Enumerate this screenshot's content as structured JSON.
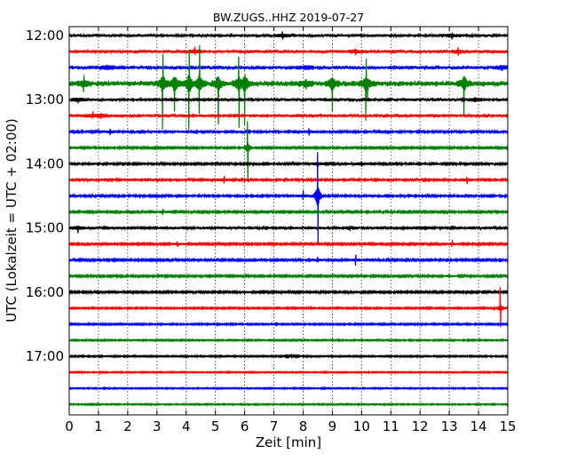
{
  "chart_data": {
    "type": "line",
    "title": "BW.ZUGS..HHZ 2019-07-27",
    "xlabel": "Zeit  [min]",
    "ylabel": "UTC (Lokalzeit = UTC + 02:00)",
    "xlim": [
      0,
      15
    ],
    "x_ticks": [
      0,
      1,
      2,
      3,
      4,
      5,
      6,
      7,
      8,
      9,
      10,
      11,
      12,
      13,
      14,
      15
    ],
    "x_tick_labels": [
      "0",
      "1",
      "2",
      "3",
      "4",
      "5",
      "6",
      "7",
      "8",
      "9",
      "10",
      "11",
      "12",
      "13",
      "14",
      "15"
    ],
    "y_tick_labels": [
      "12:00",
      "13:00",
      "14:00",
      "15:00",
      "16:00",
      "17:00"
    ],
    "grid": true,
    "colors": [
      "#000000",
      "#ff0000",
      "#0000ff",
      "#008000"
    ],
    "traces": [
      {
        "start": "12:00",
        "amp": 2.0,
        "events": [
          {
            "t": 7.3,
            "a": 6
          },
          {
            "t": 13.1,
            "a": 5
          }
        ]
      },
      {
        "start": "12:15",
        "amp": 2.2,
        "events": [
          {
            "t": 4.3,
            "a": 6
          },
          {
            "t": 9.8,
            "a": 5
          },
          {
            "t": 13.3,
            "a": 5
          }
        ]
      },
      {
        "start": "12:30",
        "amp": 2.6,
        "events": [
          {
            "t": 1.3,
            "a": 4
          },
          {
            "t": 8.1,
            "a": 4
          },
          {
            "t": 14.8,
            "a": 4
          }
        ]
      },
      {
        "start": "12:45",
        "amp": 3.5,
        "events": [
          {
            "t": 0.5,
            "a": 14
          },
          {
            "t": 3.2,
            "a": 52
          },
          {
            "t": 3.6,
            "a": 55
          },
          {
            "t": 4.1,
            "a": 60
          },
          {
            "t": 4.45,
            "a": 58
          },
          {
            "t": 5.1,
            "a": 55
          },
          {
            "t": 5.8,
            "a": 50
          },
          {
            "t": 6.0,
            "a": 62
          },
          {
            "t": 8.1,
            "a": 10
          },
          {
            "t": 9.0,
            "a": 50
          },
          {
            "t": 10.15,
            "a": 42
          },
          {
            "t": 10.2,
            "a": 30
          },
          {
            "t": 13.5,
            "a": 42
          }
        ]
      },
      {
        "start": "13:00",
        "amp": 2.2,
        "events": [
          {
            "t": 0.3,
            "a": 5
          },
          {
            "t": 13.9,
            "a": 4
          }
        ]
      },
      {
        "start": "13:15",
        "amp": 2.2,
        "events": [
          {
            "t": 0.8,
            "a": 5
          },
          {
            "t": 1.1,
            "a": 4
          }
        ]
      },
      {
        "start": "13:30",
        "amp": 1.6,
        "events": [
          {
            "t": 1.4,
            "a": 5
          },
          {
            "t": 8.2,
            "a": 6
          }
        ]
      },
      {
        "start": "13:45",
        "amp": 1.2,
        "events": [
          {
            "t": 6.1,
            "a": 40
          }
        ]
      },
      {
        "start": "14:00",
        "amp": 1.6,
        "events": [
          {
            "t": 8.5,
            "a": 5
          },
          {
            "t": 10.0,
            "a": 4
          }
        ]
      },
      {
        "start": "14:15",
        "amp": 1.7,
        "events": [
          {
            "t": 5.3,
            "a": 5
          },
          {
            "t": 13.6,
            "a": 5
          }
        ]
      },
      {
        "start": "14:30",
        "amp": 1.6,
        "events": [
          {
            "t": 8.0,
            "a": 7
          },
          {
            "t": 8.5,
            "a": 75
          }
        ]
      },
      {
        "start": "14:45",
        "amp": 1.4,
        "events": [
          {
            "t": 3.2,
            "a": 5
          }
        ]
      },
      {
        "start": "15:00",
        "amp": 1.9,
        "events": [
          {
            "t": 0.3,
            "a": 7
          },
          {
            "t": 9.6,
            "a": 5
          },
          {
            "t": 12.2,
            "a": 3
          }
        ]
      },
      {
        "start": "15:15",
        "amp": 1.3,
        "events": [
          {
            "t": 3.7,
            "a": 5
          },
          {
            "t": 13.1,
            "a": 5
          }
        ]
      },
      {
        "start": "15:30",
        "amp": 1.5,
        "events": [
          {
            "t": 8.5,
            "a": 4
          },
          {
            "t": 9.8,
            "a": 7
          }
        ]
      },
      {
        "start": "15:45",
        "amp": 1.3,
        "events": [
          {
            "t": 13.0,
            "a": 3
          }
        ]
      },
      {
        "start": "16:00",
        "amp": 1.3,
        "events": [
          {
            "t": 6.0,
            "a": 3
          }
        ]
      },
      {
        "start": "16:15",
        "amp": 1.0,
        "events": [
          {
            "t": 14.75,
            "a": 28
          }
        ]
      },
      {
        "start": "16:30",
        "amp": 1.0,
        "events": []
      },
      {
        "start": "16:45",
        "amp": 0.9,
        "events": []
      },
      {
        "start": "17:00",
        "amp": 0.9,
        "events": [
          {
            "t": 7.6,
            "a": 3
          }
        ]
      },
      {
        "start": "17:15",
        "amp": 0.8,
        "events": []
      },
      {
        "start": "17:30",
        "amp": 0.8,
        "events": []
      },
      {
        "start": "17:45",
        "amp": 0.8,
        "events": []
      }
    ]
  }
}
